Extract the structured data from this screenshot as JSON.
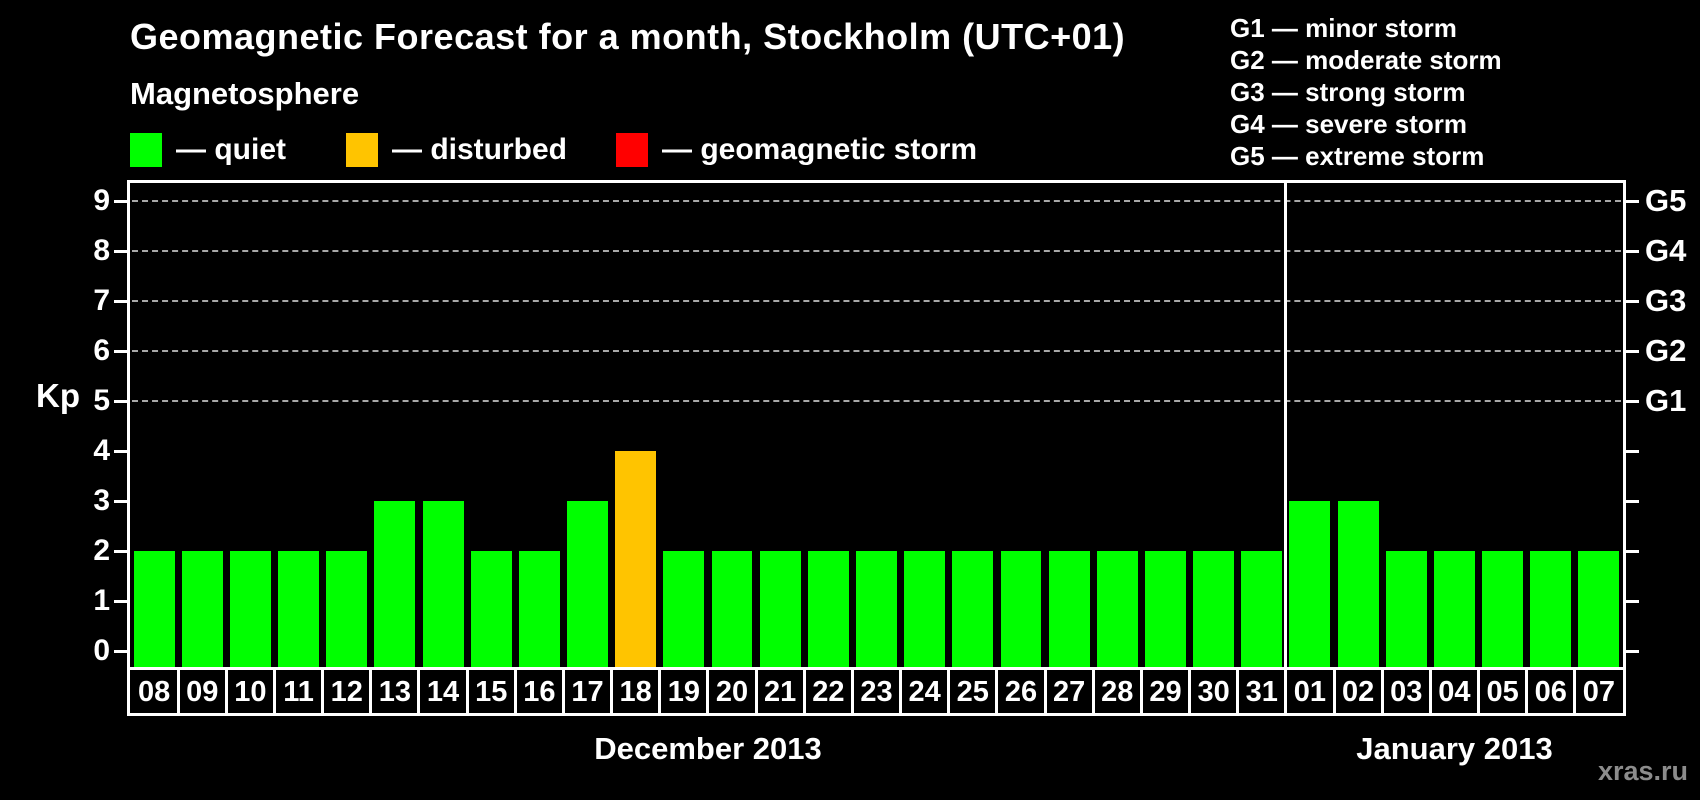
{
  "title": "Geomagnetic Forecast for a month, Stockholm (UTC+01)",
  "subtitle": "Magnetosphere",
  "legend": {
    "items": [
      {
        "label": "— quiet",
        "state": "quiet",
        "color": "#00ff00"
      },
      {
        "label": "— disturbed",
        "state": "disturbed",
        "color": "#ffc400"
      },
      {
        "label": "— geomagnetic storm",
        "state": "storm",
        "color": "#ff0000"
      }
    ]
  },
  "g_legend": {
    "items": [
      "G1 — minor storm",
      "G2 — moderate storm",
      "G3 — strong storm",
      "G4 — severe storm",
      "G5 — extreme storm"
    ]
  },
  "watermark": "xras.ru",
  "chart_data": {
    "type": "bar",
    "title": "Geomagnetic Forecast for a month, Stockholm (UTC+01)",
    "xlabel": "",
    "ylabel": "Kp",
    "ylim": [
      0,
      9.4
    ],
    "yticks": [
      0,
      1,
      2,
      3,
      4,
      5,
      6,
      7,
      8,
      9
    ],
    "gridlines_at": [
      5,
      6,
      7,
      8,
      9
    ],
    "grid_style": "dashed horizontal",
    "legend_position": "top-left",
    "right_axis_labels": [
      {
        "kp": 5,
        "label": "G1"
      },
      {
        "kp": 6,
        "label": "G2"
      },
      {
        "kp": 7,
        "label": "G3"
      },
      {
        "kp": 8,
        "label": "G4"
      },
      {
        "kp": 9,
        "label": "G5"
      }
    ],
    "categories": [
      "08",
      "09",
      "10",
      "11",
      "12",
      "13",
      "14",
      "15",
      "16",
      "17",
      "18",
      "19",
      "20",
      "21",
      "22",
      "23",
      "24",
      "25",
      "26",
      "27",
      "28",
      "29",
      "30",
      "31",
      "01",
      "02",
      "03",
      "04",
      "05",
      "06",
      "07"
    ],
    "values": [
      2,
      2,
      2,
      2,
      2,
      3,
      3,
      2,
      2,
      3,
      4,
      2,
      2,
      2,
      2,
      2,
      2,
      2,
      2,
      2,
      2,
      2,
      2,
      2,
      3,
      3,
      2,
      2,
      2,
      2,
      2
    ],
    "states": [
      "quiet",
      "quiet",
      "quiet",
      "quiet",
      "quiet",
      "quiet",
      "quiet",
      "quiet",
      "quiet",
      "quiet",
      "disturbed",
      "quiet",
      "quiet",
      "quiet",
      "quiet",
      "quiet",
      "quiet",
      "quiet",
      "quiet",
      "quiet",
      "quiet",
      "quiet",
      "quiet",
      "quiet",
      "quiet",
      "quiet",
      "quiet",
      "quiet",
      "quiet",
      "quiet",
      "quiet"
    ],
    "state_colors": {
      "quiet": "#00ff00",
      "disturbed": "#ffc400",
      "storm": "#ff0000"
    },
    "month_sections": [
      {
        "label": "December 2013",
        "count": 24
      },
      {
        "label": "January 2013",
        "count": 7
      }
    ]
  }
}
